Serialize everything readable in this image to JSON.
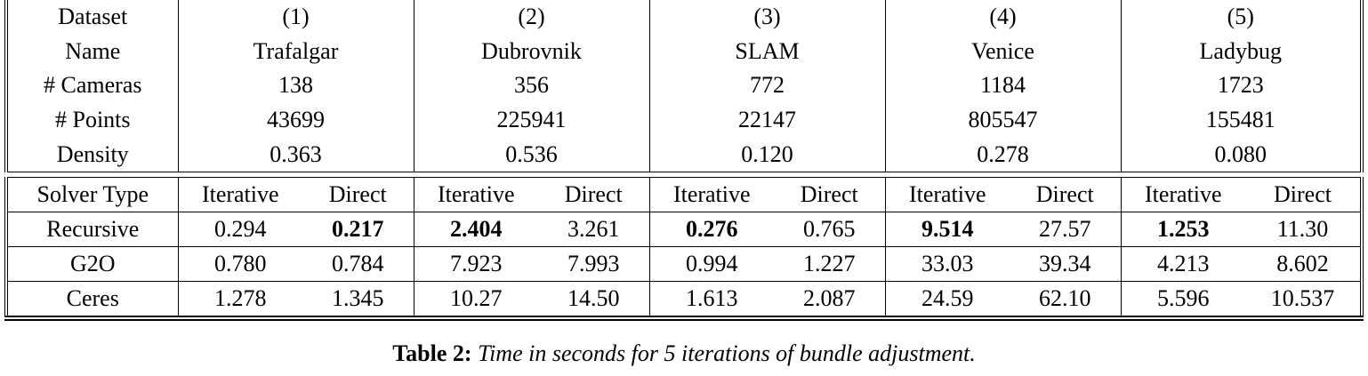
{
  "info": {
    "rows": [
      [
        "Dataset",
        "(1)",
        "(2)",
        "(3)",
        "(4)",
        "(5)"
      ],
      [
        "Name",
        "Trafalgar",
        "Dubrovnik",
        "SLAM",
        "Venice",
        "Ladybug"
      ],
      [
        "# Cameras",
        "138",
        "356",
        "772",
        "1184",
        "1723"
      ],
      [
        "# Points",
        "43699",
        "225941",
        "22147",
        "805547",
        "155481"
      ],
      [
        "Density",
        "0.363",
        "0.536",
        "0.120",
        "0.278",
        "0.080"
      ]
    ]
  },
  "solver": {
    "header": [
      "Solver Type",
      "Iterative",
      "Direct",
      "Iterative",
      "Direct",
      "Iterative",
      "Direct",
      "Iterative",
      "Direct",
      "Iterative",
      "Direct"
    ],
    "rows": [
      [
        "Recursive",
        "0.294",
        "0.217",
        "2.404",
        "3.261",
        "0.276",
        "0.765",
        "9.514",
        "27.57",
        "1.253",
        "11.30"
      ],
      [
        "G2O",
        "0.780",
        "0.784",
        "7.923",
        "7.993",
        "0.994",
        "1.227",
        "33.03",
        "39.34",
        "4.213",
        "8.602"
      ],
      [
        "Ceres",
        "1.278",
        "1.345",
        "10.27",
        "14.50",
        "1.613",
        "2.087",
        "24.59",
        "62.10",
        "5.596",
        "10.537"
      ]
    ]
  },
  "caption": {
    "label": "Table 2:",
    "text": "Time in seconds for 5 iterations of bundle adjustment."
  }
}
